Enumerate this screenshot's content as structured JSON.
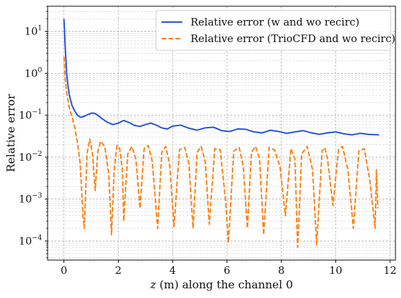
{
  "chart_data": {
    "type": "line",
    "title": "",
    "xlabel_italic": "z",
    "xlabel": " (m) along the channel 0",
    "ylabel": "Relative error",
    "x_scale": "linear",
    "y_scale": "log",
    "xlim": [
      -0.6,
      12.2
    ],
    "ylim": [
      3.5e-05,
      40
    ],
    "grid": true,
    "grid_minor": true,
    "legend_position": "top-right",
    "x_ticks": [
      0,
      2,
      4,
      6,
      8,
      10,
      12
    ],
    "x_tick_labels": [
      "0",
      "2",
      "4",
      "6",
      "8",
      "10",
      "12"
    ],
    "y_ticks": [
      0.0001,
      0.001,
      0.01,
      0.1,
      1,
      10
    ],
    "y_tick_labels": [
      {
        "base": "10",
        "exp": "−4"
      },
      {
        "base": "10",
        "exp": "−3"
      },
      {
        "base": "10",
        "exp": "−2"
      },
      {
        "base": "10",
        "exp": "−1"
      },
      {
        "base": "10",
        "exp": "0"
      },
      {
        "base": "10",
        "exp": "1"
      }
    ],
    "series": [
      {
        "name": "Relative error (w and wo recirc)",
        "color": "#1f4fe8",
        "dash": "solid",
        "x": [
          0.0,
          0.05,
          0.1,
          0.15,
          0.2,
          0.3,
          0.4,
          0.5,
          0.6,
          0.7,
          0.8,
          0.9,
          1.0,
          1.1,
          1.2,
          1.3,
          1.4,
          1.6,
          1.8,
          2.0,
          2.2,
          2.4,
          2.6,
          2.8,
          3.0,
          3.2,
          3.4,
          3.6,
          3.8,
          4.0,
          4.3,
          4.6,
          4.9,
          5.2,
          5.5,
          5.8,
          6.1,
          6.4,
          6.7,
          7.0,
          7.3,
          7.6,
          7.9,
          8.2,
          8.5,
          8.8,
          9.1,
          9.4,
          9.7,
          10.0,
          10.3,
          10.6,
          10.9,
          11.2,
          11.6
        ],
        "y": [
          20,
          4,
          1.0,
          0.5,
          0.3,
          0.17,
          0.125,
          0.1,
          0.09,
          0.092,
          0.098,
          0.105,
          0.112,
          0.112,
          0.105,
          0.094,
          0.083,
          0.068,
          0.06,
          0.065,
          0.075,
          0.067,
          0.057,
          0.054,
          0.06,
          0.065,
          0.058,
          0.05,
          0.047,
          0.055,
          0.058,
          0.049,
          0.044,
          0.05,
          0.052,
          0.043,
          0.041,
          0.047,
          0.046,
          0.04,
          0.038,
          0.044,
          0.041,
          0.037,
          0.04,
          0.043,
          0.038,
          0.035,
          0.038,
          0.04,
          0.036,
          0.034,
          0.037,
          0.035,
          0.034
        ]
      },
      {
        "name": "Relative error (TrioCFD and wo recirc)",
        "color": "#ff7f0e",
        "dash": "dashed",
        "x": [
          0.0,
          0.05,
          0.1,
          0.2,
          0.3,
          0.4,
          0.5,
          0.6,
          0.7,
          0.75,
          0.85,
          0.95,
          1.05,
          1.15,
          1.25,
          1.35,
          1.5,
          1.65,
          1.75,
          1.85,
          1.95,
          2.05,
          2.15,
          2.2,
          2.35,
          2.5,
          2.65,
          2.8,
          2.95,
          3.1,
          3.25,
          3.45,
          3.6,
          3.75,
          3.9,
          4.05,
          4.25,
          4.45,
          4.6,
          4.75,
          4.9,
          5.05,
          5.2,
          5.35,
          5.55,
          5.75,
          5.95,
          6.05,
          6.25,
          6.45,
          6.6,
          6.75,
          6.9,
          7.05,
          7.2,
          7.35,
          7.55,
          7.75,
          7.95,
          8.15,
          8.35,
          8.5,
          8.6,
          8.75,
          8.95,
          9.15,
          9.3,
          9.5,
          9.6,
          9.7,
          9.9,
          10.1,
          10.25,
          10.45,
          10.65,
          10.85,
          11.05,
          11.25,
          11.45,
          11.5,
          11.55
        ],
        "y": [
          2.5,
          0.7,
          0.35,
          0.15,
          0.09,
          0.05,
          0.022,
          0.007,
          0.0004,
          0.0002,
          0.012,
          0.027,
          0.012,
          0.0016,
          0.014,
          0.024,
          0.018,
          0.004,
          0.00014,
          0.005,
          0.019,
          0.016,
          0.005,
          0.0003,
          0.012,
          0.018,
          0.009,
          0.0006,
          0.016,
          0.019,
          0.008,
          0.0002,
          0.013,
          0.018,
          0.006,
          0.00022,
          0.015,
          0.017,
          0.007,
          0.0002,
          0.013,
          0.018,
          0.008,
          0.00025,
          0.016,
          0.015,
          0.0009,
          9e-05,
          0.014,
          0.017,
          0.006,
          0.0002,
          0.013,
          0.018,
          0.009,
          0.00014,
          0.017,
          0.015,
          0.006,
          0.0004,
          0.016,
          0.009,
          7e-05,
          0.012,
          0.018,
          0.005,
          8e-05,
          0.014,
          0.017,
          0.009,
          0.0007,
          0.015,
          0.018,
          0.005,
          0.0002,
          0.014,
          0.016,
          0.003,
          0.0002,
          0.005,
          0.0006
        ]
      }
    ]
  }
}
